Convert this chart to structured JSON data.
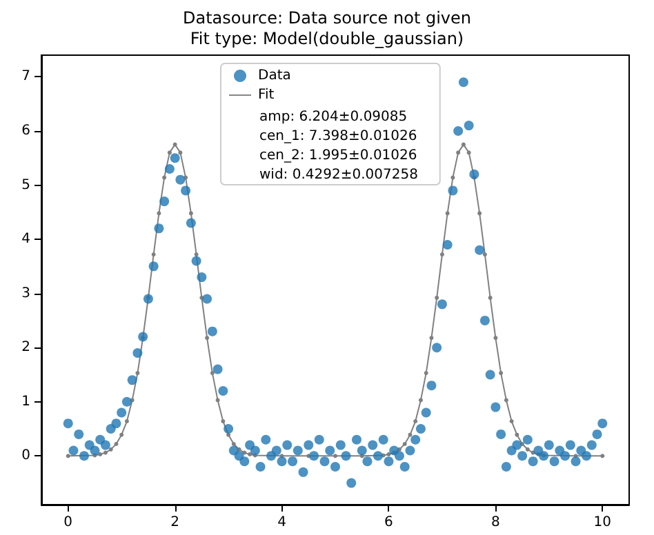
{
  "chart_data": {
    "type": "scatter",
    "title": "Datasource: Data source not given",
    "subtitle": "Fit type: Model(double_gaussian)",
    "legend": "top",
    "grid": false,
    "marker": "circle",
    "xlim": [
      -0.5,
      10.5
    ],
    "xticks": [
      0,
      2,
      4,
      6,
      8,
      10
    ],
    "ylim": [
      -0.9,
      7.4
    ],
    "yticks": [
      0,
      1,
      2,
      3,
      4,
      5,
      6,
      7
    ],
    "annotations": [
      "amp: 6.204±0.09085",
      "cen_1: 7.398±0.01026",
      "cen_2: 1.995±0.01026",
      "wid: 0.4292±0.007258"
    ],
    "series": [
      {
        "name": "Data",
        "color": "#1f77b4",
        "x": [
          0,
          0.1,
          0.2,
          0.3,
          0.4,
          0.5,
          0.6,
          0.7,
          0.8,
          0.9,
          1,
          1.1,
          1.2,
          1.3,
          1.4,
          1.5,
          1.6,
          1.7,
          1.8,
          1.9,
          2,
          2.1,
          2.2,
          2.3,
          2.4,
          2.5,
          2.6,
          2.7,
          2.8,
          2.9,
          3,
          3.1,
          3.2,
          3.3,
          3.4,
          3.5,
          3.6,
          3.7,
          3.8,
          3.9,
          4,
          4.1,
          4.2,
          4.3,
          4.4,
          4.5,
          4.6,
          4.7,
          4.8,
          4.9,
          5,
          5.1,
          5.2,
          5.3,
          5.4,
          5.5,
          5.6,
          5.7,
          5.8,
          5.9,
          6,
          6.1,
          6.2,
          6.3,
          6.4,
          6.5,
          6.6,
          6.7,
          6.8,
          6.9,
          7,
          7.1,
          7.2,
          7.3,
          7.4,
          7.5,
          7.6,
          7.7,
          7.8,
          7.9,
          8,
          8.1,
          8.2,
          8.3,
          8.4,
          8.5,
          8.6,
          8.7,
          8.8,
          8.9,
          9,
          9.1,
          9.2,
          9.3,
          9.4,
          9.5,
          9.6,
          9.7,
          9.8,
          9.9,
          10
        ],
        "values": [
          0.6,
          0.1,
          0.4,
          0.0,
          0.2,
          0.1,
          0.3,
          0.2,
          0.5,
          0.6,
          0.8,
          1.0,
          1.4,
          1.9,
          2.2,
          2.9,
          3.5,
          4.2,
          4.7,
          5.3,
          5.5,
          5.1,
          4.9,
          4.3,
          3.6,
          3.3,
          2.9,
          2.3,
          1.6,
          1.2,
          0.5,
          0.1,
          0.0,
          -0.1,
          0.2,
          0.1,
          -0.2,
          0.3,
          0.0,
          0.1,
          -0.1,
          0.2,
          -0.1,
          0.1,
          -0.3,
          0.2,
          0.0,
          0.3,
          -0.1,
          0.1,
          -0.2,
          0.2,
          0.0,
          -0.5,
          0.3,
          0.1,
          -0.1,
          0.2,
          0.0,
          0.3,
          -0.1,
          0.1,
          0.0,
          -0.2,
          0.1,
          0.3,
          0.5,
          0.8,
          1.3,
          2.0,
          2.8,
          3.9,
          4.9,
          6.0,
          6.9,
          6.1,
          5.2,
          3.8,
          2.5,
          1.5,
          0.9,
          0.4,
          -0.2,
          0.1,
          0.2,
          0.0,
          0.3,
          -0.1,
          0.1,
          0.0,
          0.2,
          -0.1,
          0.1,
          0.0,
          0.2,
          -0.1,
          0.1,
          0.0,
          0.2,
          0.4,
          0.6
        ]
      },
      {
        "name": "Fit",
        "type": "line",
        "color": "#808080",
        "line_style": "solid",
        "x": [
          0,
          0.5,
          0.6,
          0.7,
          0.8,
          0.9,
          1,
          1.1,
          1.2,
          1.3,
          1.4,
          1.5,
          1.6,
          1.7,
          1.8,
          1.9,
          2,
          2.1,
          2.2,
          2.3,
          2.4,
          2.5,
          2.6,
          2.7,
          2.8,
          2.9,
          3,
          3.1,
          3.2,
          3.3,
          3.4,
          3.5,
          4,
          4.5,
          5,
          5.5,
          5.9,
          6,
          6.1,
          6.2,
          6.3,
          6.4,
          6.5,
          6.6,
          6.7,
          6.8,
          6.9,
          7,
          7.1,
          7.2,
          7.3,
          7.4,
          7.5,
          7.6,
          7.7,
          7.8,
          7.9,
          8,
          8.1,
          8.2,
          8.3,
          8.4,
          8.5,
          8.6,
          8.7,
          8.8,
          8.9,
          9.5,
          10
        ],
        "values": [
          0,
          0.01,
          0.03,
          0.06,
          0.12,
          0.22,
          0.39,
          0.64,
          1.03,
          1.53,
          2.18,
          2.92,
          3.72,
          4.48,
          5.14,
          5.6,
          5.75,
          5.6,
          5.14,
          4.48,
          3.72,
          2.92,
          2.18,
          1.53,
          1.03,
          0.64,
          0.39,
          0.22,
          0.12,
          0.06,
          0.03,
          0.01,
          0,
          0,
          0,
          0,
          0.01,
          0.03,
          0.06,
          0.12,
          0.22,
          0.39,
          0.64,
          1.03,
          1.53,
          2.18,
          2.92,
          3.72,
          4.48,
          5.14,
          5.6,
          5.75,
          5.6,
          5.14,
          4.48,
          3.72,
          2.92,
          2.18,
          1.53,
          1.03,
          0.64,
          0.39,
          0.22,
          0.12,
          0.06,
          0.03,
          0.01,
          0,
          0
        ]
      }
    ]
  }
}
